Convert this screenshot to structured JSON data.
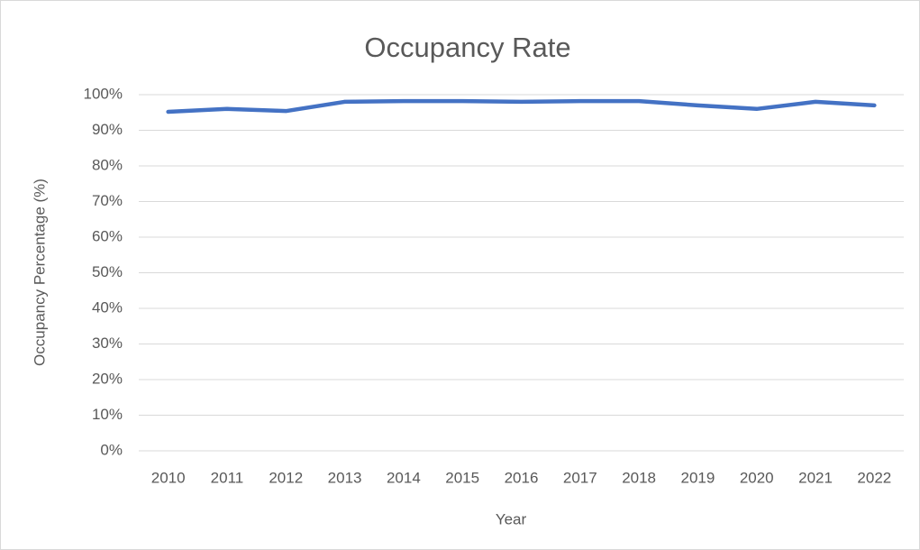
{
  "chart_data": {
    "type": "line",
    "title": "Occupancy Rate",
    "x_label": "Year",
    "y_label": "Occupancy Percentage (%)",
    "categories": [
      "2010",
      "2011",
      "2012",
      "2013",
      "2014",
      "2015",
      "2016",
      "2017",
      "2018",
      "2019",
      "2020",
      "2021",
      "2022"
    ],
    "series": [
      {
        "name": "Occupancy Rate",
        "color": "#4472c4",
        "values": [
          95.2,
          96.0,
          95.4,
          98.0,
          98.2,
          98.2,
          98.0,
          98.2,
          98.2,
          97.0,
          96.0,
          98.0,
          97.0
        ]
      }
    ],
    "ylim": [
      0,
      100
    ],
    "yticks": [
      {
        "value": 0,
        "label": "0%"
      },
      {
        "value": 10,
        "label": "10%"
      },
      {
        "value": 20,
        "label": "20%"
      },
      {
        "value": 30,
        "label": "30%"
      },
      {
        "value": 40,
        "label": "40%"
      },
      {
        "value": 50,
        "label": "50%"
      },
      {
        "value": 60,
        "label": "60%"
      },
      {
        "value": 70,
        "label": "70%"
      },
      {
        "value": 80,
        "label": "80%"
      },
      {
        "value": 90,
        "label": "90%"
      },
      {
        "value": 100,
        "label": "100%"
      }
    ],
    "grid": true
  }
}
